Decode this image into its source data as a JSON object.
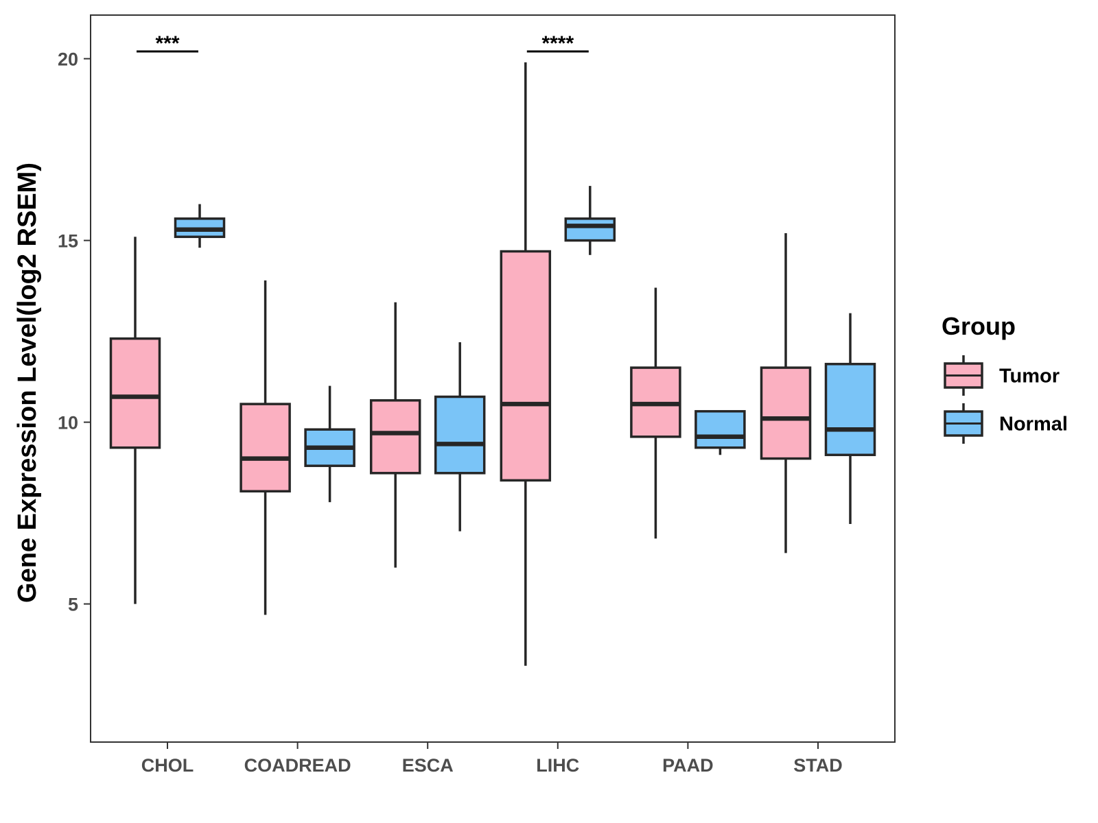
{
  "chart_data": {
    "type": "boxplot",
    "title": "",
    "xlabel": "",
    "ylabel": "Gene Expression Level(log2 RSEM)",
    "ylim": [
      1.2,
      21.2
    ],
    "yticks": [
      5,
      10,
      15,
      20
    ],
    "grid": false,
    "categories": [
      "CHOL",
      "COADREAD",
      "ESCA",
      "LIHC",
      "PAAD",
      "STAD"
    ],
    "legend": {
      "title": "Group",
      "position": "right",
      "entries": [
        {
          "name": "Tumor",
          "color": "#FBB0C1"
        },
        {
          "name": "Normal",
          "color": "#7AC4F7"
        }
      ]
    },
    "series": [
      {
        "name": "Tumor",
        "color": "#FBB0C1",
        "boxes": [
          {
            "category": "CHOL",
            "min": 5.0,
            "q1": 9.3,
            "median": 10.7,
            "q3": 12.3,
            "max": 15.1
          },
          {
            "category": "COADREAD",
            "min": 4.7,
            "q1": 8.1,
            "median": 9.0,
            "q3": 10.5,
            "max": 13.9
          },
          {
            "category": "ESCA",
            "min": 6.0,
            "q1": 8.6,
            "median": 9.7,
            "q3": 10.6,
            "max": 13.3
          },
          {
            "category": "LIHC",
            "min": 3.3,
            "q1": 8.4,
            "median": 10.5,
            "q3": 14.7,
            "max": 19.9
          },
          {
            "category": "PAAD",
            "min": 6.8,
            "q1": 9.6,
            "median": 10.5,
            "q3": 11.5,
            "max": 13.7
          },
          {
            "category": "STAD",
            "min": 6.4,
            "q1": 9.0,
            "median": 10.1,
            "q3": 11.5,
            "max": 15.2
          }
        ]
      },
      {
        "name": "Normal",
        "color": "#7AC4F7",
        "boxes": [
          {
            "category": "CHOL",
            "min": 14.8,
            "q1": 15.1,
            "median": 15.3,
            "q3": 15.6,
            "max": 16.0
          },
          {
            "category": "COADREAD",
            "min": 7.8,
            "q1": 8.8,
            "median": 9.3,
            "q3": 9.8,
            "max": 11.0
          },
          {
            "category": "ESCA",
            "min": 7.0,
            "q1": 8.6,
            "median": 9.4,
            "q3": 10.7,
            "max": 12.2
          },
          {
            "category": "LIHC",
            "min": 14.6,
            "q1": 15.0,
            "median": 15.4,
            "q3": 15.6,
            "max": 16.5
          },
          {
            "category": "PAAD",
            "min": 9.1,
            "q1": 9.3,
            "median": 9.6,
            "q3": 10.3,
            "max": 10.3
          },
          {
            "category": "STAD",
            "min": 7.2,
            "q1": 9.1,
            "median": 9.8,
            "q3": 11.6,
            "max": 13.0
          }
        ]
      }
    ],
    "annotations": [
      {
        "category": "CHOL",
        "label": "***",
        "y": 20.2
      },
      {
        "category": "LIHC",
        "label": "****",
        "y": 20.2
      }
    ]
  }
}
